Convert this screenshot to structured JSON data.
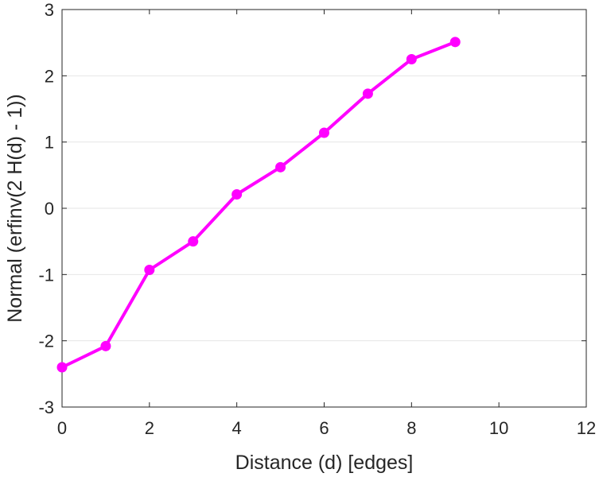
{
  "chart_data": {
    "type": "line",
    "title": "",
    "xlabel": "Distance (d) [edges]",
    "ylabel": "Normal (erfinv(2 H(d) - 1))",
    "xlim": [
      0,
      12
    ],
    "ylim": [
      -3,
      3
    ],
    "xticks": [
      0,
      2,
      4,
      6,
      8,
      10,
      12
    ],
    "yticks": [
      -3,
      -2,
      -1,
      0,
      1,
      2,
      3
    ],
    "xtick_labels": [
      "0",
      "2",
      "4",
      "6",
      "8",
      "10",
      "12"
    ],
    "ytick_labels": [
      "-3",
      "-2",
      "-1",
      "0",
      "1",
      "2",
      "3"
    ],
    "grid": "horizontal",
    "legend": "none",
    "series": [
      {
        "color": "#ff00ff",
        "marker": "circle",
        "x": [
          0,
          1,
          2,
          3,
          4,
          5,
          6,
          7,
          8,
          9
        ],
        "y": [
          -2.4,
          -2.08,
          -0.93,
          -0.5,
          0.21,
          0.62,
          1.14,
          1.73,
          2.25,
          2.51
        ]
      }
    ]
  }
}
